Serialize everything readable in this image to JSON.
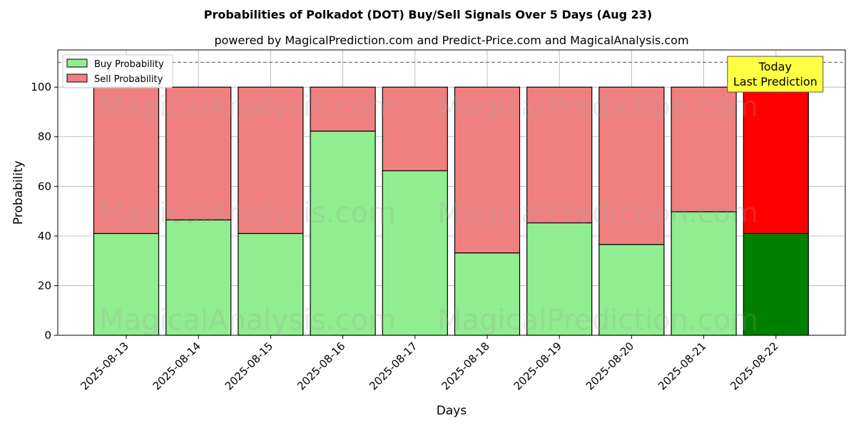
{
  "chart_data": {
    "type": "bar",
    "stacked": true,
    "title": "Probabilities of Polkadot (DOT) Buy/Sell Signals Over 5 Days (Aug 23)",
    "subtitle": "powered by MagicalPrediction.com and Predict-Price.com and MagicalAnalysis.com",
    "xlabel": "Days",
    "ylabel": "Probability",
    "ylim": [
      0,
      115
    ],
    "yticks": [
      0,
      20,
      40,
      60,
      80,
      100
    ],
    "grid": true,
    "reference_line": 110,
    "categories": [
      "2025-08-13",
      "2025-08-14",
      "2025-08-15",
      "2025-08-16",
      "2025-08-17",
      "2025-08-18",
      "2025-08-19",
      "2025-08-20",
      "2025-08-21",
      "2025-08-22"
    ],
    "series": [
      {
        "name": "Buy Probability",
        "values": [
          41,
          46.5,
          41,
          82.3,
          66.3,
          33.2,
          45.3,
          36.6,
          49.8,
          41
        ],
        "color": "#90ee90",
        "highlight_color": "#008000"
      },
      {
        "name": "Sell Probability",
        "values": [
          59,
          53.5,
          59,
          17.7,
          33.7,
          66.8,
          54.7,
          63.4,
          50.2,
          59
        ],
        "color": "#f08080",
        "highlight_color": "#ff0000"
      }
    ],
    "legend_position": "top-left",
    "annotation": {
      "lines": [
        "Today",
        "Last Prediction"
      ],
      "category": "2025-08-22",
      "background": "#ffff44"
    },
    "watermarks": [
      "MagicalAnalysis.com",
      "MagicalPrediction.com"
    ]
  }
}
